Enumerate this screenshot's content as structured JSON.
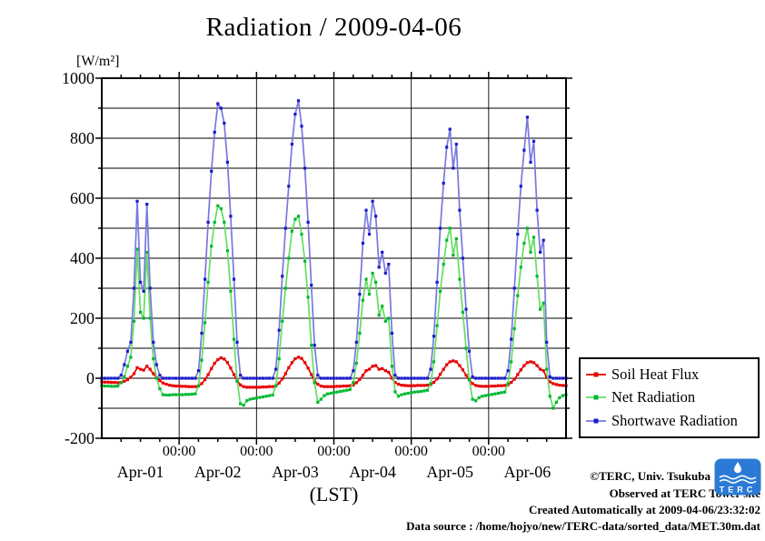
{
  "title": "Radiation / 2009-04-06",
  "y_axis": {
    "unit": "[W/m²]",
    "tick_labels": [
      "1000",
      "800",
      "600",
      "400",
      "200",
      "0",
      "-200"
    ],
    "tick_values": [
      1000,
      800,
      600,
      400,
      200,
      0,
      -200
    ]
  },
  "x_axis": {
    "label": "(LST)",
    "midnight_labels": [
      "00:00",
      "00:00",
      "00:00",
      "00:00",
      "00:00"
    ],
    "day_labels": [
      "Apr-01",
      "Apr-02",
      "Apr-03",
      "Apr-04",
      "Apr-05",
      "Apr-06"
    ]
  },
  "annotations": {
    "credit": "©TERC, Univ. Tsukuba",
    "observed": "Observed at TERC Tower site",
    "created": "Created Automatically at 2009-04-06/23:32:02",
    "data_source": "Data source : /home/hojyo/new/TERC-data/sorted_data/MET.30m.dat",
    "logo_text": "TERC"
  },
  "chart_data": {
    "type": "line",
    "title": "Radiation / 2009-04-06",
    "xlabel": "(LST)",
    "ylabel": "[W/m²]",
    "ylim": [
      -200,
      1000
    ],
    "x_unit": "hours since 2009-04-01 00:00 LST",
    "x_range_hours": [
      0,
      144
    ],
    "grid": true,
    "legend_position": "outside-right-bottom",
    "x_gridlines_at_hours": [
      24,
      48,
      72,
      96,
      120
    ],
    "y_gridline_step": 100,
    "series": [
      {
        "name": "Soil Heat Flux",
        "marker_color": "#e80000",
        "line_color": "#e80000",
        "values": [
          -12,
          -13,
          -13,
          -14,
          -14,
          -15,
          -14,
          -10,
          -5,
          3,
          15,
          35,
          30,
          27,
          40,
          30,
          15,
          2,
          -8,
          -16,
          -20,
          -23,
          -25,
          -26,
          -26,
          -27,
          -27,
          -28,
          -28,
          -28,
          -26,
          -18,
          -5,
          12,
          32,
          50,
          62,
          68,
          64,
          52,
          34,
          12,
          -8,
          -22,
          -28,
          -30,
          -30,
          -30,
          -30,
          -30,
          -29,
          -29,
          -28,
          -28,
          -26,
          -16,
          -2,
          15,
          35,
          52,
          65,
          70,
          66,
          52,
          34,
          12,
          -8,
          -20,
          -26,
          -28,
          -28,
          -28,
          -28,
          -27,
          -27,
          -26,
          -26,
          -25,
          -23,
          -15,
          -4,
          10,
          25,
          30,
          40,
          42,
          30,
          32,
          25,
          20,
          0,
          -14,
          -20,
          -23,
          -24,
          -25,
          -25,
          -25,
          -24,
          -24,
          -24,
          -23,
          -21,
          -14,
          -2,
          13,
          30,
          45,
          55,
          58,
          55,
          42,
          28,
          10,
          -6,
          -18,
          -24,
          -26,
          -27,
          -27,
          -27,
          -26,
          -26,
          -25,
          -25,
          -24,
          -22,
          -14,
          -3,
          12,
          28,
          42,
          52,
          55,
          52,
          42,
          30,
          25,
          2,
          -12,
          -18,
          -21,
          -23,
          -24,
          -25
        ]
      },
      {
        "name": "Net Radiation",
        "marker_color": "#00b830",
        "line_color": "#63dd63",
        "values": [
          -25,
          -26,
          -26,
          -27,
          -27,
          -26,
          -15,
          5,
          40,
          70,
          190,
          430,
          220,
          200,
          420,
          200,
          65,
          0,
          -35,
          -55,
          -56,
          -56,
          -55,
          -55,
          -55,
          -55,
          -54,
          -54,
          -53,
          -52,
          -25,
          60,
          185,
          320,
          440,
          520,
          575,
          565,
          520,
          425,
          290,
          130,
          -10,
          -85,
          -90,
          -75,
          -70,
          -68,
          -66,
          -64,
          -62,
          -60,
          -58,
          -56,
          -25,
          65,
          190,
          300,
          400,
          490,
          530,
          540,
          480,
          390,
          270,
          110,
          -15,
          -80,
          -70,
          -58,
          -52,
          -50,
          -48,
          -46,
          -44,
          -42,
          -40,
          -38,
          -15,
          50,
          150,
          260,
          330,
          280,
          350,
          320,
          210,
          240,
          190,
          200,
          40,
          -45,
          -60,
          -55,
          -52,
          -50,
          -48,
          -46,
          -45,
          -44,
          -42,
          -40,
          -18,
          55,
          175,
          290,
          380,
          460,
          500,
          410,
          465,
          330,
          220,
          100,
          -5,
          -70,
          -75,
          -65,
          -60,
          -58,
          -56,
          -54,
          -52,
          -50,
          -48,
          -46,
          -18,
          55,
          165,
          275,
          370,
          450,
          500,
          420,
          470,
          340,
          230,
          250,
          30,
          -60,
          -100,
          -80,
          -65,
          -58,
          -55
        ]
      },
      {
        "name": "Shortwave Radiation",
        "marker_color": "#1a1acc",
        "line_color": "#7878e0",
        "values": [
          0,
          0,
          0,
          0,
          0,
          0,
          10,
          45,
          90,
          120,
          300,
          590,
          320,
          290,
          580,
          300,
          120,
          45,
          10,
          0,
          0,
          0,
          0,
          0,
          0,
          0,
          0,
          0,
          0,
          0,
          25,
          150,
          330,
          520,
          690,
          820,
          915,
          900,
          850,
          720,
          540,
          330,
          120,
          10,
          0,
          0,
          0,
          0,
          0,
          0,
          0,
          0,
          0,
          0,
          30,
          160,
          340,
          500,
          640,
          780,
          880,
          925,
          840,
          700,
          520,
          310,
          110,
          10,
          0,
          0,
          0,
          0,
          0,
          0,
          0,
          0,
          0,
          0,
          25,
          120,
          280,
          450,
          560,
          480,
          590,
          540,
          370,
          420,
          350,
          380,
          150,
          10,
          0,
          0,
          0,
          0,
          0,
          0,
          0,
          0,
          0,
          0,
          30,
          140,
          320,
          500,
          650,
          770,
          830,
          700,
          780,
          560,
          400,
          230,
          90,
          5,
          0,
          0,
          0,
          0,
          0,
          0,
          0,
          0,
          0,
          0,
          25,
          130,
          300,
          480,
          640,
          760,
          870,
          720,
          790,
          560,
          420,
          460,
          120,
          5,
          0,
          0,
          0,
          0,
          0
        ]
      }
    ]
  }
}
